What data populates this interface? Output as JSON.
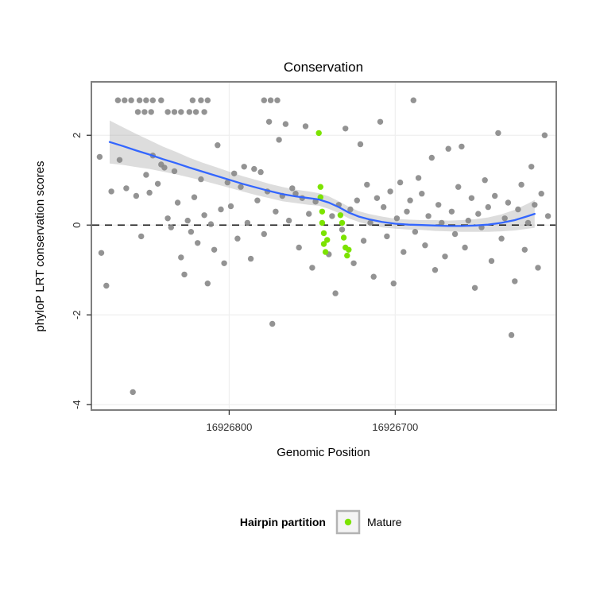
{
  "colors": {
    "point_gray": "#878787",
    "mature_green": "#7CE300",
    "smooth_blue": "#3366FF",
    "ribbon_gray": "#9E9E9E",
    "grid": "#EFEFEF",
    "panel_border": "#7F7F7F",
    "reference_line": "#000000",
    "tick": "#333333"
  },
  "chart_data": {
    "type": "scatter",
    "title": "Conservation",
    "xlabel": "Genomic Position",
    "ylabel": "phyloP LRT conservation scores",
    "x_axis": {
      "reversed": true,
      "domain": [
        16926883,
        16926603
      ],
      "ticks": [
        16926800,
        16926700
      ],
      "tick_labels": [
        "16926800",
        "16926700"
      ]
    },
    "y_axis": {
      "domain": [
        -4.12,
        3.19
      ],
      "ticks": [
        -4,
        -2,
        0,
        2
      ],
      "tick_labels": [
        "-4",
        "-2",
        "0",
        "2"
      ]
    },
    "reference_line_y": 0,
    "grid": true,
    "points": {
      "other": [
        [
          16926867,
          2.78
        ],
        [
          16926863,
          2.78
        ],
        [
          16926859,
          2.78
        ],
        [
          16926854,
          2.78
        ],
        [
          16926850,
          2.78
        ],
        [
          16926846,
          2.78
        ],
        [
          16926841,
          2.78
        ],
        [
          16926822,
          2.78
        ],
        [
          16926817,
          2.78
        ],
        [
          16926813,
          2.78
        ],
        [
          16926779,
          2.78
        ],
        [
          16926775,
          2.78
        ],
        [
          16926771,
          2.78
        ],
        [
          16926689,
          2.78
        ],
        [
          16926855,
          2.52
        ],
        [
          16926851,
          2.52
        ],
        [
          16926847,
          2.52
        ],
        [
          16926837,
          2.52
        ],
        [
          16926833,
          2.52
        ],
        [
          16926829,
          2.52
        ],
        [
          16926824,
          2.52
        ],
        [
          16926820,
          2.52
        ],
        [
          16926815,
          2.52
        ],
        [
          16926878,
          1.52
        ],
        [
          16926877,
          -0.62
        ],
        [
          16926874,
          -1.35
        ],
        [
          16926871,
          0.75
        ],
        [
          16926866,
          1.45
        ],
        [
          16926862,
          0.82
        ],
        [
          16926858,
          -3.72
        ],
        [
          16926856,
          0.65
        ],
        [
          16926853,
          -0.25
        ],
        [
          16926850,
          1.12
        ],
        [
          16926848,
          0.72
        ],
        [
          16926846,
          1.55
        ],
        [
          16926843,
          0.92
        ],
        [
          16926841,
          1.35
        ],
        [
          16926839,
          1.28
        ],
        [
          16926837,
          0.15
        ],
        [
          16926835,
          -0.05
        ],
        [
          16926833,
          1.2
        ],
        [
          16926831,
          0.5
        ],
        [
          16926829,
          -0.72
        ],
        [
          16926827,
          -1.1
        ],
        [
          16926825,
          0.1
        ],
        [
          16926823,
          -0.15
        ],
        [
          16926821,
          0.62
        ],
        [
          16926819,
          -0.4
        ],
        [
          16926817,
          1.02
        ],
        [
          16926815,
          0.22
        ],
        [
          16926813,
          -1.3
        ],
        [
          16926811,
          0.02
        ],
        [
          16926809,
          -0.55
        ],
        [
          16926807,
          1.78
        ],
        [
          16926805,
          0.35
        ],
        [
          16926803,
          -0.85
        ],
        [
          16926801,
          0.95
        ],
        [
          16926799,
          0.42
        ],
        [
          16926797,
          1.15
        ],
        [
          16926795,
          -0.3
        ],
        [
          16926793,
          0.85
        ],
        [
          16926791,
          1.3
        ],
        [
          16926789,
          0.05
        ],
        [
          16926787,
          -0.75
        ],
        [
          16926785,
          1.25
        ],
        [
          16926783,
          0.55
        ],
        [
          16926781,
          1.18
        ],
        [
          16926779,
          -0.2
        ],
        [
          16926777,
          0.75
        ],
        [
          16926776,
          2.3
        ],
        [
          16926774,
          -2.2
        ],
        [
          16926772,
          0.3
        ],
        [
          16926770,
          1.9
        ],
        [
          16926768,
          0.65
        ],
        [
          16926766,
          2.25
        ],
        [
          16926764,
          0.1
        ],
        [
          16926762,
          0.82
        ],
        [
          16926760,
          0.7
        ],
        [
          16926758,
          -0.5
        ],
        [
          16926756,
          0.6
        ],
        [
          16926754,
          2.2
        ],
        [
          16926752,
          0.25
        ],
        [
          16926750,
          -0.95
        ],
        [
          16926748,
          0.52
        ],
        [
          16926740,
          -0.65
        ],
        [
          16926738,
          0.2
        ],
        [
          16926736,
          -1.52
        ],
        [
          16926734,
          0.45
        ],
        [
          16926732,
          -0.1
        ],
        [
          16926730,
          2.15
        ],
        [
          16926727,
          0.35
        ],
        [
          16926725,
          -0.85
        ],
        [
          16926723,
          0.55
        ],
        [
          16926721,
          1.8
        ],
        [
          16926719,
          -0.35
        ],
        [
          16926717,
          0.9
        ],
        [
          16926715,
          0.05
        ],
        [
          16926713,
          -1.15
        ],
        [
          16926711,
          0.6
        ],
        [
          16926709,
          2.3
        ],
        [
          16926707,
          0.4
        ],
        [
          16926705,
          -0.25
        ],
        [
          16926703,
          0.75
        ],
        [
          16926701,
          -1.3
        ],
        [
          16926699,
          0.15
        ],
        [
          16926697,
          0.95
        ],
        [
          16926695,
          -0.6
        ],
        [
          16926693,
          0.3
        ],
        [
          16926691,
          0.55
        ],
        [
          16926688,
          -0.15
        ],
        [
          16926686,
          1.05
        ],
        [
          16926684,
          0.7
        ],
        [
          16926682,
          -0.45
        ],
        [
          16926680,
          0.2
        ],
        [
          16926678,
          1.5
        ],
        [
          16926676,
          -1.0
        ],
        [
          16926674,
          0.45
        ],
        [
          16926672,
          0.05
        ],
        [
          16926670,
          -0.7
        ],
        [
          16926668,
          1.7
        ],
        [
          16926666,
          0.3
        ],
        [
          16926664,
          -0.2
        ],
        [
          16926662,
          0.85
        ],
        [
          16926660,
          1.75
        ],
        [
          16926658,
          -0.5
        ],
        [
          16926656,
          0.1
        ],
        [
          16926654,
          0.6
        ],
        [
          16926652,
          -1.4
        ],
        [
          16926650,
          0.25
        ],
        [
          16926648,
          -0.05
        ],
        [
          16926646,
          1.0
        ],
        [
          16926644,
          0.4
        ],
        [
          16926642,
          -0.8
        ],
        [
          16926640,
          0.65
        ],
        [
          16926638,
          2.05
        ],
        [
          16926636,
          -0.3
        ],
        [
          16926634,
          0.15
        ],
        [
          16926632,
          0.5
        ],
        [
          16926630,
          -2.45
        ],
        [
          16926628,
          -1.25
        ],
        [
          16926626,
          0.35
        ],
        [
          16926624,
          0.9
        ],
        [
          16926622,
          -0.55
        ],
        [
          16926620,
          0.05
        ],
        [
          16926618,
          1.3
        ],
        [
          16926616,
          0.45
        ],
        [
          16926614,
          -0.95
        ],
        [
          16926612,
          0.7
        ],
        [
          16926610,
          2.0
        ],
        [
          16926608,
          0.2
        ]
      ],
      "mature": [
        [
          16926746,
          2.05
        ],
        [
          16926745,
          0.85
        ],
        [
          16926745,
          0.62
        ],
        [
          16926744,
          0.3
        ],
        [
          16926744,
          0.05
        ],
        [
          16926743,
          -0.18
        ],
        [
          16926743,
          -0.42
        ],
        [
          16926742,
          -0.6
        ],
        [
          16926741,
          -0.33
        ],
        [
          16926733,
          0.22
        ],
        [
          16926732,
          0.05
        ],
        [
          16926731,
          -0.28
        ],
        [
          16926730,
          -0.5
        ],
        [
          16926729,
          -0.68
        ],
        [
          16926728,
          -0.55
        ]
      ]
    },
    "smooth": {
      "x": [
        16926872,
        16926864,
        16926856,
        16926848,
        16926840,
        16926832,
        16926824,
        16926816,
        16926808,
        16926800,
        16926792,
        16926784,
        16926776,
        16926768,
        16926760,
        16926752,
        16926746,
        16926740,
        16926734,
        16926728,
        16926722,
        16926716,
        16926708,
        16926700,
        16926692,
        16926684,
        16926676,
        16926668,
        16926660,
        16926652,
        16926644,
        16926636,
        16926628,
        16926620,
        16926616
      ],
      "y": [
        1.85,
        1.76,
        1.66,
        1.57,
        1.47,
        1.38,
        1.28,
        1.19,
        1.1,
        1.01,
        0.92,
        0.84,
        0.76,
        0.69,
        0.64,
        0.6,
        0.57,
        0.5,
        0.4,
        0.28,
        0.19,
        0.13,
        0.07,
        0.03,
        0.01,
        0.0,
        -0.01,
        -0.02,
        -0.02,
        -0.01,
        0.01,
        0.05,
        0.11,
        0.2,
        0.25
      ],
      "half_width": [
        0.48,
        0.42,
        0.37,
        0.32,
        0.28,
        0.25,
        0.22,
        0.2,
        0.19,
        0.18,
        0.17,
        0.17,
        0.16,
        0.16,
        0.15,
        0.15,
        0.14,
        0.14,
        0.13,
        0.13,
        0.12,
        0.12,
        0.12,
        0.11,
        0.11,
        0.11,
        0.12,
        0.12,
        0.13,
        0.14,
        0.16,
        0.19,
        0.23,
        0.28,
        0.31
      ]
    },
    "legend": {
      "position": "bottom",
      "title": "Hairpin partition",
      "entries": [
        {
          "label": "Mature",
          "color": "#7CE300"
        }
      ]
    }
  }
}
